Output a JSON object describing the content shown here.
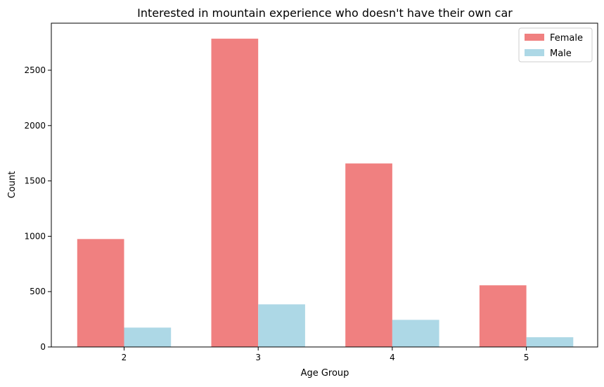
{
  "chart_data": {
    "type": "bar",
    "title": "Interested in mountain experience who doesn't have their own car",
    "xlabel": "Age Group",
    "ylabel": "Count",
    "categories": [
      "2",
      "3",
      "4",
      "5"
    ],
    "ylim": [
      0,
      2925
    ],
    "yticks": [
      0,
      500,
      1000,
      1500,
      2000,
      2500
    ],
    "grid": false,
    "legend_position": "top-right",
    "series": [
      {
        "name": "Female",
        "color": "#f08080",
        "values": [
          975,
          2785,
          1658,
          557
        ]
      },
      {
        "name": "Male",
        "color": "#add8e6",
        "values": [
          175,
          385,
          245,
          88
        ]
      }
    ]
  }
}
